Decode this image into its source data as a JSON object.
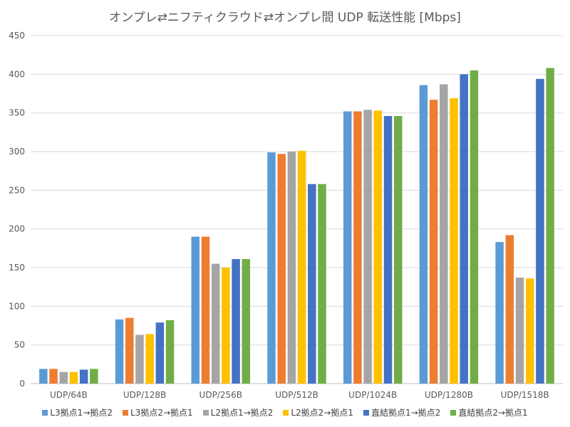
{
  "chart_data": {
    "type": "bar",
    "title": "オンプレ⇄ニフティクラウド⇄オンプレ間 UDP 転送性能 [Mbps]",
    "xlabel": "",
    "ylabel": "",
    "ylim": [
      0,
      450
    ],
    "yticks": [
      0,
      50,
      100,
      150,
      200,
      250,
      300,
      350,
      400,
      450
    ],
    "grid": true,
    "legend_position": "bottom",
    "categories": [
      "UDP/64B",
      "UDP/128B",
      "UDP/256B",
      "UDP/512B",
      "UDP/1024B",
      "UDP/1280B",
      "UDP/1518B"
    ],
    "series": [
      {
        "name": "L3拠点1→拠点2",
        "color": "#5b9bd5",
        "values": [
          19,
          83,
          190,
          299,
          352,
          386,
          183
        ]
      },
      {
        "name": "L3拠点2→拠点1",
        "color": "#ed7d31",
        "values": [
          19,
          85,
          190,
          297,
          352,
          367,
          192
        ]
      },
      {
        "name": "L2拠点1→拠点2",
        "color": "#a5a5a5",
        "values": [
          15,
          63,
          155,
          300,
          354,
          387,
          137
        ]
      },
      {
        "name": "L2拠点2→拠点1",
        "color": "#ffc000",
        "values": [
          15,
          64,
          150,
          301,
          353,
          369,
          136
        ]
      },
      {
        "name": "直結拠点1→拠点2",
        "color": "#4472c4",
        "values": [
          18,
          79,
          161,
          258,
          346,
          400,
          394
        ]
      },
      {
        "name": "直結拠点2→拠点1",
        "color": "#70ad47",
        "values": [
          19,
          82,
          161,
          258,
          346,
          405,
          408
        ]
      }
    ]
  }
}
